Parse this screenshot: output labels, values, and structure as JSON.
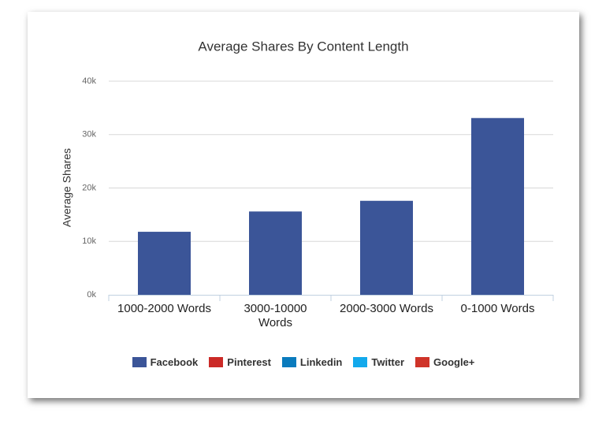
{
  "chart_data": {
    "type": "bar",
    "title": "Average Shares By Content Length",
    "y_axis_label": "Average Shares",
    "categories": [
      "1000-2000 Words",
      "3000-10000 Words",
      "2000-3000 Words",
      "0-1000 Words"
    ],
    "series": [
      {
        "name": "Facebook",
        "color": "#3b5598",
        "values": [
          11800,
          15600,
          17600,
          33100
        ]
      },
      {
        "name": "Pinterest",
        "color": "#cb2a27",
        "values": [
          null,
          null,
          null,
          null
        ]
      },
      {
        "name": "Linkedin",
        "color": "#0a7bbd",
        "values": [
          null,
          null,
          null,
          null
        ]
      },
      {
        "name": "Twitter",
        "color": "#13a9ec",
        "values": [
          null,
          null,
          null,
          null
        ]
      },
      {
        "name": "Google+",
        "color": "#cf3429",
        "values": [
          null,
          null,
          null,
          null
        ]
      }
    ],
    "ylim": [
      0,
      40000
    ],
    "yticks": [
      {
        "value": 0,
        "label": "0k"
      },
      {
        "value": 10000,
        "label": "10k"
      },
      {
        "value": 20000,
        "label": "20k"
      },
      {
        "value": 30000,
        "label": "30k"
      },
      {
        "value": 40000,
        "label": "40k"
      }
    ],
    "grid": true
  }
}
